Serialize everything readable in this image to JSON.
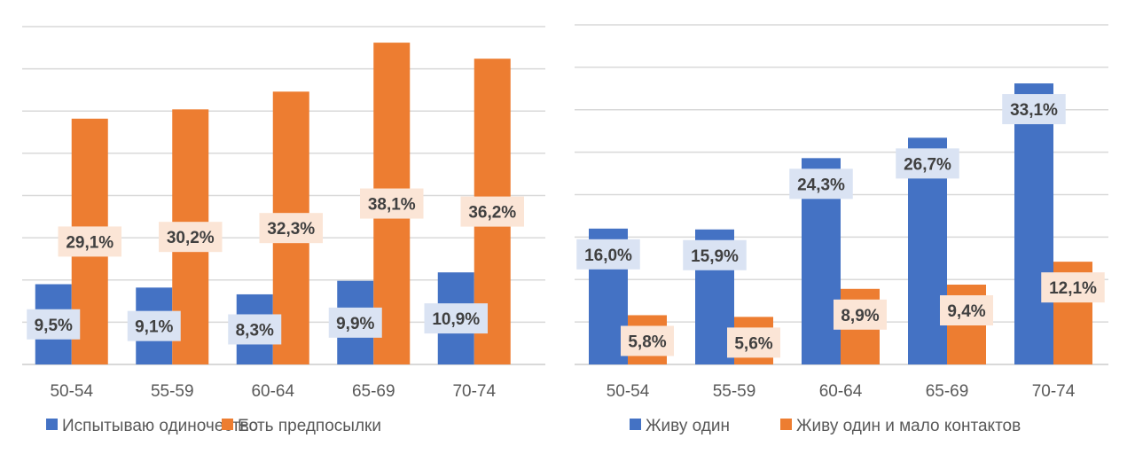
{
  "chart_data": [
    {
      "type": "bar",
      "categories": [
        "50-54",
        "55-59",
        "60-64",
        "65-69",
        "70-74"
      ],
      "series": [
        {
          "name": "Испытываю одиночество",
          "color": "#4472C4",
          "label_bg": "#DAE3F3",
          "values": [
            9.5,
            9.1,
            8.3,
            9.9,
            10.9
          ],
          "labels": [
            "9,5%",
            "9,1%",
            "8,3%",
            "9,9%",
            "10,9%"
          ]
        },
        {
          "name": "Есть предпосылки",
          "color": "#ED7D31",
          "label_bg": "#FBE5D6",
          "values": [
            29.1,
            30.2,
            32.3,
            38.1,
            36.2
          ],
          "labels": [
            "29,1%",
            "30,2%",
            "32,3%",
            "38,1%",
            "36,2%"
          ]
        }
      ],
      "ylim": [
        0,
        40
      ],
      "grid": true,
      "legend": "bottom",
      "label_position": "center"
    },
    {
      "type": "bar",
      "categories": [
        "50-54",
        "55-59",
        "60-64",
        "65-69",
        "70-74"
      ],
      "series": [
        {
          "name": "Живу один",
          "color": "#4472C4",
          "label_bg": "#DAE3F3",
          "values": [
            16.0,
            15.9,
            24.3,
            26.7,
            33.1
          ],
          "labels": [
            "16,0%",
            "15,9%",
            "24,3%",
            "26,7%",
            "33,1%"
          ]
        },
        {
          "name": "Живу один и мало контактов",
          "color": "#ED7D31",
          "label_bg": "#FBE5D6",
          "values": [
            5.8,
            5.6,
            8.9,
            9.4,
            12.1
          ],
          "labels": [
            "5,8%",
            "5,6%",
            "8,9%",
            "9,4%",
            "12,1%"
          ]
        }
      ],
      "ylim": [
        0,
        40
      ],
      "grid": true,
      "legend": "bottom",
      "label_position": "inside-end"
    }
  ]
}
